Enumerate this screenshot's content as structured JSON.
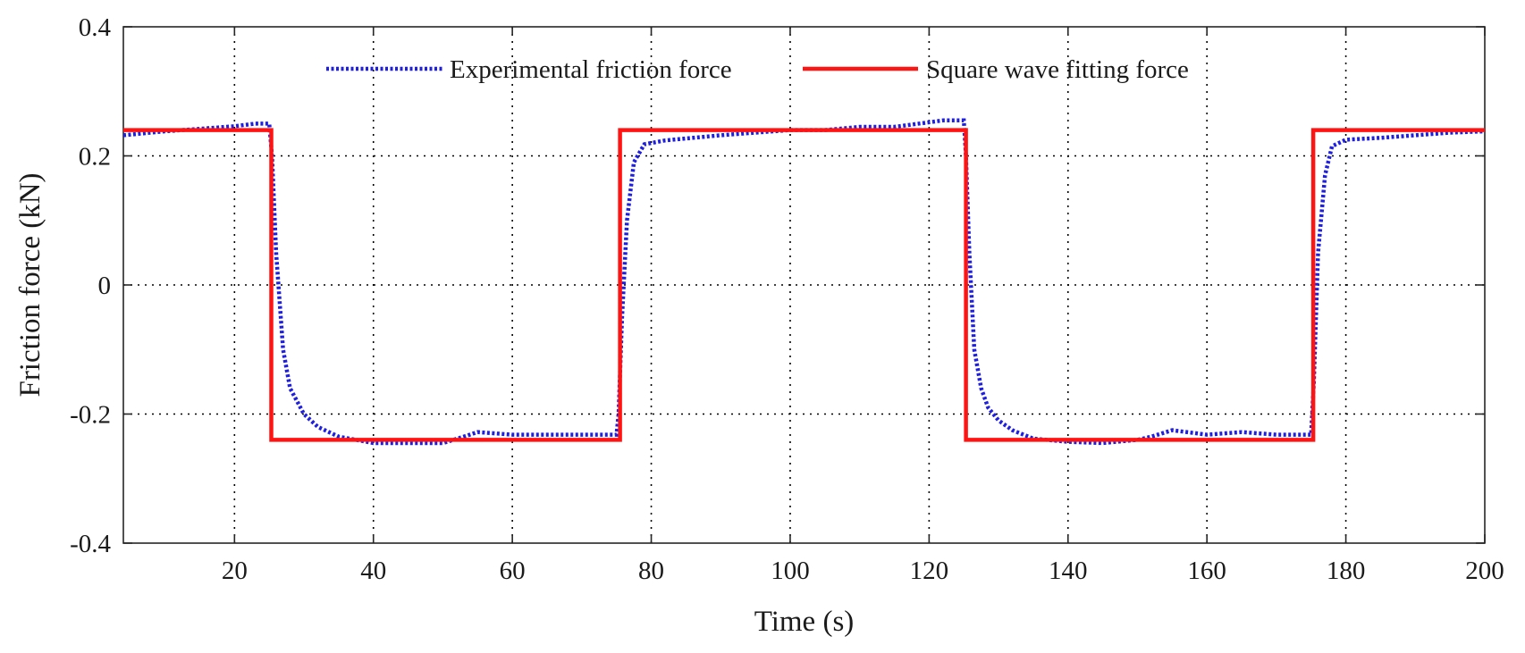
{
  "chart_data": {
    "type": "line",
    "title": "",
    "xlabel": "Time (s)",
    "ylabel": "Friction force (kN)",
    "xlim": [
      4,
      200
    ],
    "ylim": [
      -0.4,
      0.4
    ],
    "xticks": [
      20,
      40,
      60,
      80,
      100,
      120,
      140,
      160,
      180,
      200
    ],
    "yticks": [
      -0.4,
      -0.2,
      0,
      0.2,
      0.4
    ],
    "xtick_labels": [
      "20",
      "40",
      "60",
      "80",
      "100",
      "120",
      "140",
      "160",
      "180",
      "200"
    ],
    "ytick_labels": [
      "-0.4",
      "-0.2",
      "0",
      "0.2",
      "0.4"
    ],
    "grid": true,
    "legend_position": "top-center",
    "series": [
      {
        "name": "Experimental friction force",
        "color": "#1f1fe0",
        "style": "dotted",
        "x": [
          4,
          10,
          15,
          20,
          23,
          25,
          25.4,
          26,
          27,
          28,
          30,
          32,
          35,
          40,
          45,
          50,
          53,
          55,
          60,
          65,
          70,
          75,
          75.3,
          75.8,
          76.5,
          77.5,
          79,
          82,
          86,
          90,
          95,
          100,
          105,
          110,
          115,
          120,
          122,
          125,
          125.3,
          125.8,
          126.5,
          127.5,
          128.5,
          130,
          132,
          135,
          140,
          145,
          150,
          152,
          155,
          160,
          165,
          170,
          175,
          175.4,
          176,
          177,
          178,
          180,
          185,
          190,
          195,
          200
        ],
        "y": [
          0.232,
          0.238,
          0.242,
          0.246,
          0.25,
          0.25,
          0.2,
          0.05,
          -0.1,
          -0.16,
          -0.2,
          -0.22,
          -0.235,
          -0.245,
          -0.245,
          -0.245,
          -0.235,
          -0.228,
          -0.232,
          -0.232,
          -0.232,
          -0.232,
          -0.2,
          -0.05,
          0.1,
          0.19,
          0.218,
          0.224,
          0.228,
          0.232,
          0.236,
          0.24,
          0.24,
          0.245,
          0.245,
          0.252,
          0.255,
          0.255,
          0.2,
          0.05,
          -0.1,
          -0.16,
          -0.19,
          -0.21,
          -0.225,
          -0.238,
          -0.243,
          -0.245,
          -0.24,
          -0.235,
          -0.225,
          -0.232,
          -0.228,
          -0.232,
          -0.232,
          -0.15,
          0.05,
          0.17,
          0.215,
          0.225,
          0.228,
          0.232,
          0.236,
          0.238
        ]
      },
      {
        "name": "Square wave fitting force",
        "color": "#ff1414",
        "style": "solid",
        "x": [
          4,
          25.3,
          25.3,
          75.5,
          75.5,
          125.3,
          125.3,
          175.3,
          175.3,
          200
        ],
        "y": [
          0.24,
          0.24,
          -0.24,
          -0.24,
          0.24,
          0.24,
          -0.24,
          -0.24,
          0.24,
          0.24
        ]
      }
    ]
  }
}
